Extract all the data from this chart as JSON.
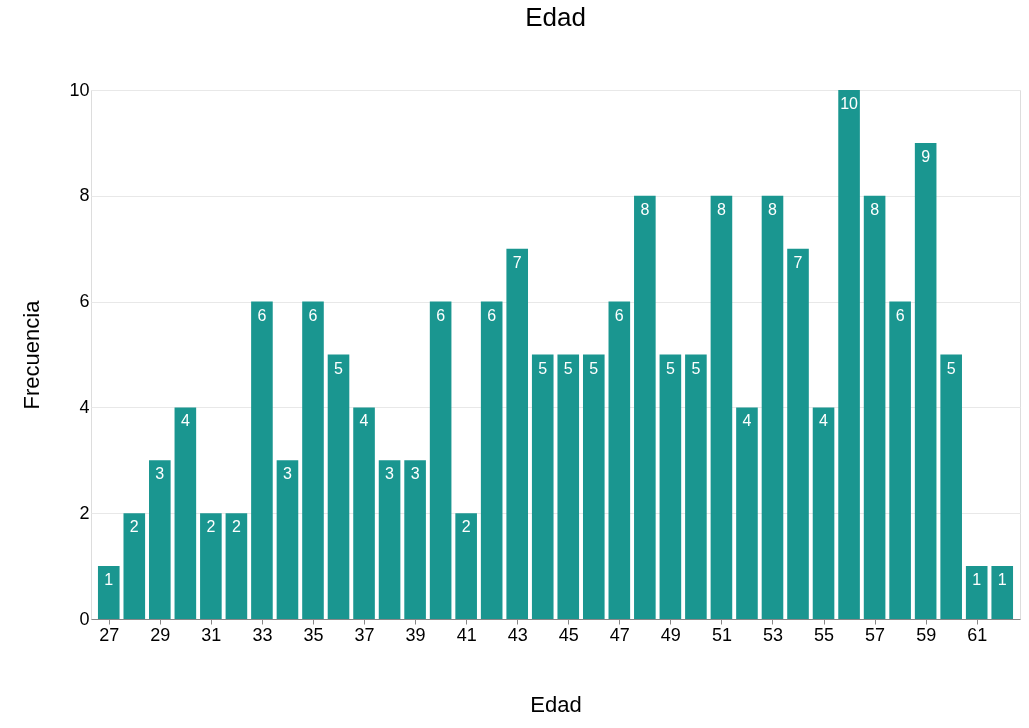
{
  "chart_data": {
    "type": "bar",
    "title": "Edad",
    "xlabel": "Edad",
    "ylabel": "Frecuencia",
    "x": [
      27,
      28,
      29,
      30,
      31,
      32,
      33,
      34,
      35,
      36,
      37,
      38,
      39,
      40,
      41,
      42,
      43,
      44,
      45,
      46,
      47,
      48,
      49,
      50,
      51,
      52,
      53,
      54,
      55,
      56,
      57,
      58,
      59,
      60,
      61,
      62
    ],
    "values": [
      1,
      2,
      3,
      4,
      2,
      2,
      6,
      3,
      6,
      5,
      4,
      3,
      3,
      6,
      2,
      6,
      7,
      5,
      5,
      5,
      6,
      8,
      5,
      5,
      8,
      4,
      8,
      7,
      4,
      10,
      8,
      6,
      9,
      5,
      1,
      1
    ],
    "color": "#1a9690",
    "xlim": [
      26.5,
      62.5
    ],
    "xticks": [
      27,
      29,
      31,
      33,
      35,
      37,
      39,
      41,
      43,
      45,
      47,
      49,
      51,
      53,
      55,
      57,
      59,
      61
    ],
    "ylim": [
      0,
      10
    ],
    "yticks": [
      0,
      2,
      4,
      6,
      8,
      10
    ],
    "grid": "y",
    "data_labels": true
  }
}
